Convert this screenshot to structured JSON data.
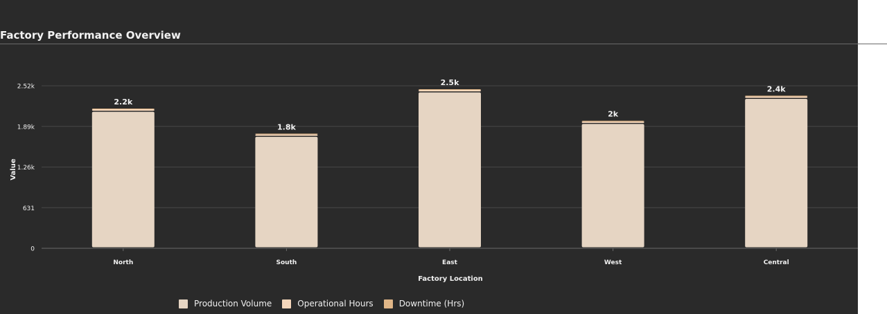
{
  "chart_data": {
    "type": "bar",
    "stacked": true,
    "title": "Factory Performance Overview",
    "xlabel": "Factory Location",
    "ylabel": "Value",
    "categories": [
      "North",
      "South",
      "East",
      "West",
      "Central"
    ],
    "series": [
      {
        "name": "Production Volume",
        "color": "#e6d5c3",
        "values": [
          2120,
          1730,
          2420,
          1930,
          2320
        ]
      },
      {
        "name": "Operational Hours",
        "color": "#f6d7bb",
        "values": [
          40,
          40,
          40,
          40,
          40
        ]
      },
      {
        "name": "Downtime (Hrs)",
        "color": "#e0b687",
        "values": [
          10,
          10,
          10,
          10,
          10
        ]
      }
    ],
    "data_labels": [
      "2.2k",
      "1.8k",
      "2.5k",
      "2k",
      "2.4k"
    ],
    "yticks": [
      0,
      631,
      1262,
      1893,
      2524
    ],
    "ytick_labels": [
      "0",
      "631",
      "1.26k",
      "1.89k",
      "2.52k"
    ],
    "ylim": [
      0,
      2524
    ],
    "grid": true,
    "legend_position": "bottom"
  }
}
